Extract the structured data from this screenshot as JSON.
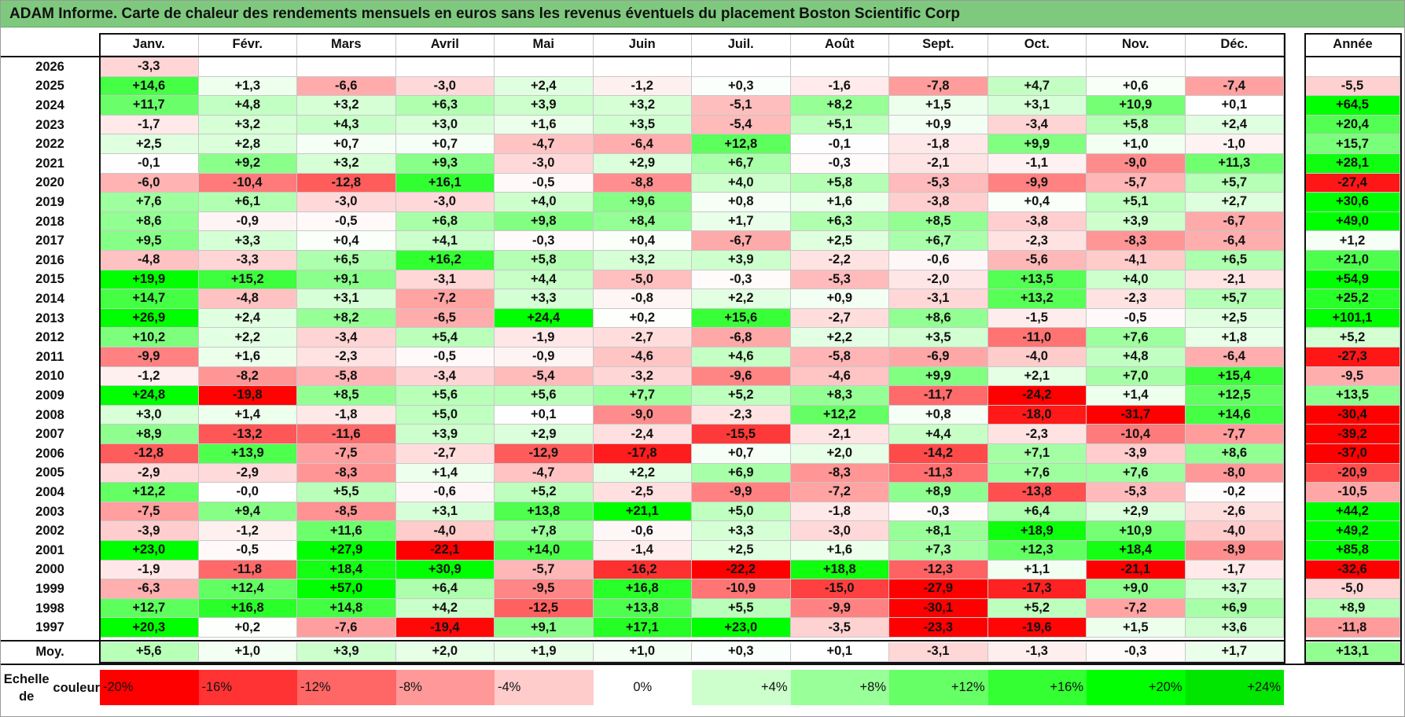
{
  "title": "ADAM Informe. Carte de chaleur des rendements mensuels en euros sans les revenus éventuels du placement Boston Scientific Corp",
  "chart_data": {
    "type": "heatmap",
    "title": "ADAM Informe. Carte de chaleur des rendements mensuels en euros sans les revenus éventuels du placement Boston Scientific Corp",
    "columns": [
      "Janv.",
      "Févr.",
      "Mars",
      "Avril",
      "Mai",
      "Juin",
      "Juil.",
      "Août",
      "Sept.",
      "Oct.",
      "Nov.",
      "Déc."
    ],
    "year_header": "Année",
    "rows": [
      {
        "year": "2026",
        "months": [
          "-3,3",
          "",
          "",
          "",
          "",
          "",
          "",
          "",
          "",
          "",
          "",
          ""
        ],
        "annual": ""
      },
      {
        "year": "2025",
        "months": [
          "+14,6",
          "+1,3",
          "-6,6",
          "-3,0",
          "+2,4",
          "-1,2",
          "+0,3",
          "-1,6",
          "-7,8",
          "+4,7",
          "+0,6",
          "-7,4"
        ],
        "annual": "-5,5"
      },
      {
        "year": "2024",
        "months": [
          "+11,7",
          "+4,8",
          "+3,2",
          "+6,3",
          "+3,9",
          "+3,2",
          "-5,1",
          "+8,2",
          "+1,5",
          "+3,1",
          "+10,9",
          "+0,1"
        ],
        "annual": "+64,5"
      },
      {
        "year": "2023",
        "months": [
          "-1,7",
          "+3,2",
          "+4,3",
          "+3,0",
          "+1,6",
          "+3,5",
          "-5,4",
          "+5,1",
          "+0,9",
          "-3,4",
          "+5,8",
          "+2,4"
        ],
        "annual": "+20,4"
      },
      {
        "year": "2022",
        "months": [
          "+2,5",
          "+2,8",
          "+0,7",
          "+0,7",
          "-4,7",
          "-6,4",
          "+12,8",
          "-0,1",
          "-1,8",
          "+9,9",
          "+1,0",
          "-1,0"
        ],
        "annual": "+15,7"
      },
      {
        "year": "2021",
        "months": [
          "-0,1",
          "+9,2",
          "+3,2",
          "+9,3",
          "-3,0",
          "+2,9",
          "+6,7",
          "-0,3",
          "-2,1",
          "-1,1",
          "-9,0",
          "+11,3"
        ],
        "annual": "+28,1"
      },
      {
        "year": "2020",
        "months": [
          "-6,0",
          "-10,4",
          "-12,8",
          "+16,1",
          "-0,5",
          "-8,8",
          "+4,0",
          "+5,8",
          "-5,3",
          "-9,9",
          "-5,7",
          "+5,7"
        ],
        "annual": "-27,4"
      },
      {
        "year": "2019",
        "months": [
          "+7,6",
          "+6,1",
          "-3,0",
          "-3,0",
          "+4,0",
          "+9,6",
          "+0,8",
          "+1,6",
          "-3,8",
          "+0,4",
          "+5,1",
          "+2,7"
        ],
        "annual": "+30,6"
      },
      {
        "year": "2018",
        "months": [
          "+8,6",
          "-0,9",
          "-0,5",
          "+6,8",
          "+9,8",
          "+8,4",
          "+1,7",
          "+6,3",
          "+8,5",
          "-3,8",
          "+3,9",
          "-6,7"
        ],
        "annual": "+49,0"
      },
      {
        "year": "2017",
        "months": [
          "+9,5",
          "+3,3",
          "+0,4",
          "+4,1",
          "-0,3",
          "+0,4",
          "-6,7",
          "+2,5",
          "+6,7",
          "-2,3",
          "-8,3",
          "-6,4"
        ],
        "annual": "+1,2"
      },
      {
        "year": "2016",
        "months": [
          "-4,8",
          "-3,3",
          "+6,5",
          "+16,2",
          "+5,8",
          "+3,2",
          "+3,9",
          "-2,2",
          "-0,6",
          "-5,6",
          "-4,1",
          "+6,5"
        ],
        "annual": "+21,0"
      },
      {
        "year": "2015",
        "months": [
          "+19,9",
          "+15,2",
          "+9,1",
          "-3,1",
          "+4,4",
          "-5,0",
          "-0,3",
          "-5,3",
          "-2,0",
          "+13,5",
          "+4,0",
          "-2,1"
        ],
        "annual": "+54,9"
      },
      {
        "year": "2014",
        "months": [
          "+14,7",
          "-4,8",
          "+3,1",
          "-7,2",
          "+3,3",
          "-0,8",
          "+2,2",
          "+0,9",
          "-3,1",
          "+13,2",
          "-2,3",
          "+5,7"
        ],
        "annual": "+25,2"
      },
      {
        "year": "2013",
        "months": [
          "+26,9",
          "+2,4",
          "+8,2",
          "-6,5",
          "+24,4",
          "+0,2",
          "+15,6",
          "-2,7",
          "+8,6",
          "-1,5",
          "-0,5",
          "+2,5"
        ],
        "annual": "+101,1"
      },
      {
        "year": "2012",
        "months": [
          "+10,2",
          "+2,2",
          "-3,4",
          "+5,4",
          "-1,9",
          "-2,7",
          "-6,8",
          "+2,2",
          "+3,5",
          "-11,0",
          "+7,6",
          "+1,8"
        ],
        "annual": "+5,2"
      },
      {
        "year": "2011",
        "months": [
          "-9,9",
          "+1,6",
          "-2,3",
          "-0,5",
          "-0,9",
          "-4,6",
          "+4,6",
          "-5,8",
          "-6,9",
          "-4,0",
          "+4,8",
          "-6,4"
        ],
        "annual": "-27,3"
      },
      {
        "year": "2010",
        "months": [
          "-1,2",
          "-8,2",
          "-5,8",
          "-3,4",
          "-5,4",
          "-3,2",
          "-9,6",
          "-4,6",
          "+9,9",
          "+2,1",
          "+7,0",
          "+15,4"
        ],
        "annual": "-9,5"
      },
      {
        "year": "2009",
        "months": [
          "+24,8",
          "-19,8",
          "+8,5",
          "+5,6",
          "+5,6",
          "+7,7",
          "+5,2",
          "+8,3",
          "-11,7",
          "-24,2",
          "+1,4",
          "+12,5"
        ],
        "annual": "+13,5"
      },
      {
        "year": "2008",
        "months": [
          "+3,0",
          "+1,4",
          "-1,8",
          "+5,0",
          "+0,1",
          "-9,0",
          "-2,3",
          "+12,2",
          "+0,8",
          "-18,0",
          "-31,7",
          "+14,6"
        ],
        "annual": "-30,4"
      },
      {
        "year": "2007",
        "months": [
          "+8,9",
          "-13,2",
          "-11,6",
          "+3,9",
          "+2,9",
          "-2,4",
          "-15,5",
          "-2,1",
          "+4,4",
          "-2,3",
          "-10,4",
          "-7,7"
        ],
        "annual": "-39,2"
      },
      {
        "year": "2006",
        "months": [
          "-12,8",
          "+13,9",
          "-7,5",
          "-2,7",
          "-12,9",
          "-17,8",
          "+0,7",
          "+2,0",
          "-14,2",
          "+7,1",
          "-3,9",
          "+8,6"
        ],
        "annual": "-37,0"
      },
      {
        "year": "2005",
        "months": [
          "-2,9",
          "-2,9",
          "-8,3",
          "+1,4",
          "-4,7",
          "+2,2",
          "+6,9",
          "-8,3",
          "-11,3",
          "+7,6",
          "+7,6",
          "-8,0"
        ],
        "annual": "-20,9"
      },
      {
        "year": "2004",
        "months": [
          "+12,2",
          "-0,0",
          "+5,5",
          "-0,6",
          "+5,2",
          "-2,5",
          "-9,9",
          "-7,2",
          "+8,9",
          "-13,8",
          "-5,3",
          "-0,2"
        ],
        "annual": "-10,5"
      },
      {
        "year": "2003",
        "months": [
          "-7,5",
          "+9,4",
          "-8,5",
          "+3,1",
          "+13,8",
          "+21,1",
          "+5,0",
          "-1,8",
          "-0,3",
          "+6,4",
          "+2,9",
          "-2,6"
        ],
        "annual": "+44,2"
      },
      {
        "year": "2002",
        "months": [
          "-3,9",
          "-1,2",
          "+11,6",
          "-4,0",
          "+7,8",
          "-0,6",
          "+3,3",
          "-3,0",
          "+8,1",
          "+18,9",
          "+10,9",
          "-4,0"
        ],
        "annual": "+49,2"
      },
      {
        "year": "2001",
        "months": [
          "+23,0",
          "-0,5",
          "+27,9",
          "-22,1",
          "+14,0",
          "-1,4",
          "+2,5",
          "+1,6",
          "+7,3",
          "+12,3",
          "+18,4",
          "-8,9"
        ],
        "annual": "+85,8"
      },
      {
        "year": "2000",
        "months": [
          "-1,9",
          "-11,8",
          "+18,4",
          "+30,9",
          "-5,7",
          "-16,2",
          "-22,2",
          "+18,8",
          "-12,3",
          "+1,1",
          "-21,1",
          "-1,7"
        ],
        "annual": "-32,6"
      },
      {
        "year": "1999",
        "months": [
          "-6,3",
          "+12,4",
          "+57,0",
          "+6,4",
          "-9,5",
          "+16,8",
          "-10,9",
          "-15,0",
          "-27,9",
          "-17,3",
          "+9,0",
          "+3,7"
        ],
        "annual": "-5,0"
      },
      {
        "year": "1998",
        "months": [
          "+12,7",
          "+16,8",
          "+14,8",
          "+4,2",
          "-12,5",
          "+13,8",
          "+5,5",
          "-9,9",
          "-30,1",
          "+5,2",
          "-7,2",
          "+6,9"
        ],
        "annual": "+8,9"
      },
      {
        "year": "1997",
        "months": [
          "+20,3",
          "+0,2",
          "-7,6",
          "-19,4",
          "+9,1",
          "+17,1",
          "+23,0",
          "-3,5",
          "-23,3",
          "-19,6",
          "+1,5",
          "+3,6"
        ],
        "annual": "-11,8"
      }
    ],
    "average": {
      "label": "Moy.",
      "months": [
        "+5,6",
        "+1,0",
        "+3,9",
        "+2,0",
        "+1,9",
        "+1,0",
        "+0,3",
        "+0,1",
        "-3,1",
        "-1,3",
        "-0,3",
        "+1,7"
      ],
      "annual": "+13,1"
    },
    "color_scale": {
      "label_line1": "Echelle de",
      "label_line2": "couleur",
      "steps": [
        {
          "label": "-20%",
          "value": -20,
          "color": "#ff0000"
        },
        {
          "label": "-16%",
          "value": -16,
          "color": "#ff3333"
        },
        {
          "label": "-12%",
          "value": -12,
          "color": "#ff6666"
        },
        {
          "label": "-8%",
          "value": -8,
          "color": "#ff9999"
        },
        {
          "label": "-4%",
          "value": -4,
          "color": "#ffcccc"
        },
        {
          "label": "0%",
          "value": 0,
          "color": "#ffffff"
        },
        {
          "label": "+4%",
          "value": 4,
          "color": "#ccffcc"
        },
        {
          "label": "+8%",
          "value": 8,
          "color": "#99ff99"
        },
        {
          "label": "+12%",
          "value": 12,
          "color": "#66ff66"
        },
        {
          "label": "+16%",
          "value": 16,
          "color": "#33ff33"
        },
        {
          "label": "+20%",
          "value": 20,
          "color": "#00ff00"
        },
        {
          "label": "+24%",
          "value": 24,
          "color": "#00e600"
        }
      ]
    }
  }
}
